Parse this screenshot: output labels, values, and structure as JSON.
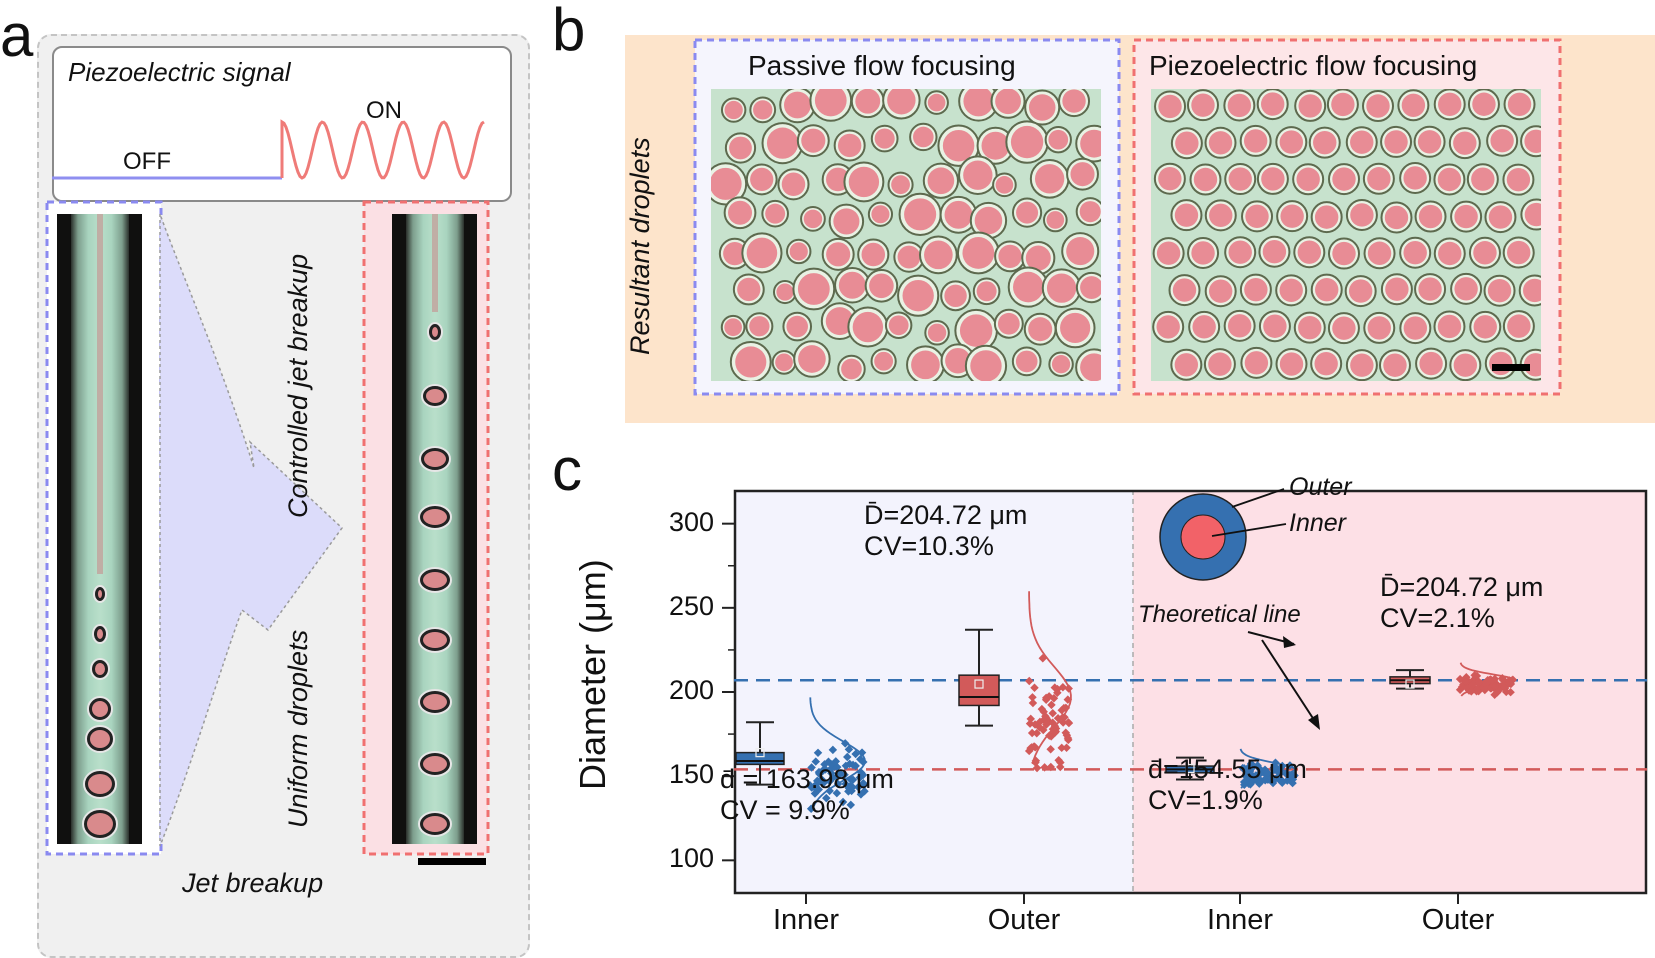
{
  "panel_letters": {
    "a": "a",
    "b": "b",
    "c": "c"
  },
  "panel_a": {
    "signal_title": "Piezoelectric signal",
    "off_label": "OFF",
    "on_label": "ON",
    "left_caption": "Uniform droplets",
    "right_caption": "Controlled jet breakup",
    "bottom_caption": "Jet breakup",
    "colors": {
      "off": "#8f8ff0",
      "on": "#ef7b78",
      "arrow": "#dcdcfa"
    }
  },
  "panel_b": {
    "side_label": "Resultant droplets",
    "left_title": "Passive flow focusing",
    "right_title": "Piezoelectric flow focusing",
    "colors": {
      "background": "#fde4cb",
      "left_frame": "#8a8af0",
      "right_frame": "#f07070",
      "droplet": "#e88c95",
      "medium": "#c7e2cd"
    }
  },
  "chart_data": {
    "type": "box",
    "ylabel": "Diameter (μm)",
    "ylim": [
      80,
      320
    ],
    "yticks": [
      "100",
      "150",
      "200",
      "250",
      "300"
    ],
    "categories": [
      "Inner",
      "Outer",
      "Inner",
      "Outer"
    ],
    "groups": [
      "Passive flow focusing",
      "Piezoelectric flow focusing"
    ],
    "theoretical_lines": {
      "outer": 207,
      "inner": 154
    },
    "theoretical_label": "Theoretical line",
    "boxes": [
      {
        "category": "Inner",
        "group": "Passive flow focusing",
        "color": "#3570b0",
        "whisker_low": 145,
        "q1": 157,
        "median": 159,
        "q3": 164,
        "whisker_high": 182,
        "mean": 163.98
      },
      {
        "category": "Outer",
        "group": "Passive flow focusing",
        "color": "#d25a5a",
        "whisker_low": 180,
        "q1": 192,
        "median": 197,
        "q3": 210,
        "whisker_high": 237,
        "mean": 204.72
      },
      {
        "category": "Inner",
        "group": "Piezoelectric flow focusing",
        "color": "#3570b0",
        "whisker_low": 148,
        "q1": 152,
        "median": 154,
        "q3": 156,
        "whisker_high": 161,
        "mean": 154.55
      },
      {
        "category": "Outer",
        "group": "Piezoelectric flow focusing",
        "color": "#d25a5a",
        "whisker_low": 202,
        "q1": 205,
        "median": 207,
        "q3": 209,
        "whisker_high": 213,
        "mean": 204.72
      }
    ],
    "annotations": {
      "passive_outer_mean": "D̄=204.72 μm",
      "passive_outer_cv": "CV=10.3%",
      "passive_inner_mean": "d̄ = 163.98 μm",
      "passive_inner_cv": "CV = 9.9%",
      "piezo_outer_mean": "D̄=204.72 μm",
      "piezo_outer_cv": "CV=2.1%",
      "piezo_inner_mean": "d̄=154.55 μm",
      "piezo_inner_cv": "CV=1.9%"
    },
    "legend": {
      "outer": "Outer",
      "inner": "Inner"
    },
    "colors": {
      "inner": "#3570b0",
      "outer": "#d25a5a",
      "left_bg": "#f3f3fd",
      "right_bg": "#fde0e6"
    }
  }
}
